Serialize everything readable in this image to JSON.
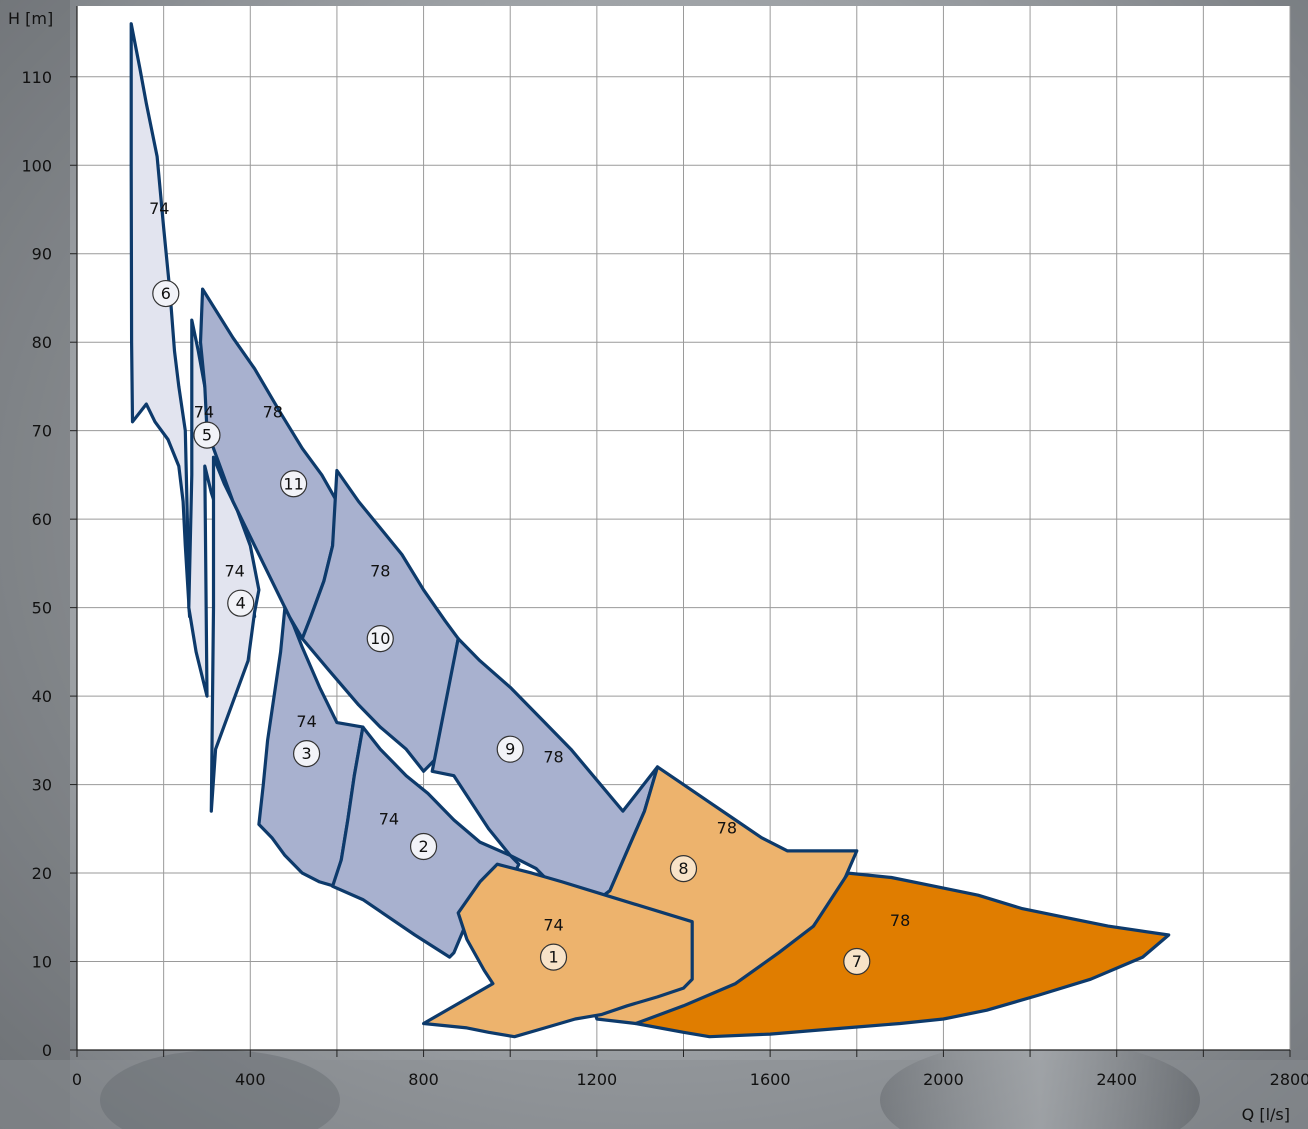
{
  "chart_data": {
    "type": "area",
    "xlabel": "Q [l/s]",
    "ylabel": "H [m]",
    "xlim": [
      0,
      2800
    ],
    "ylim": [
      0,
      118
    ],
    "xticks": [
      0,
      400,
      800,
      1200,
      1600,
      2000,
      2400,
      2800
    ],
    "yticks": [
      0,
      10,
      20,
      30,
      40,
      50,
      60,
      70,
      80,
      90,
      100,
      110
    ],
    "grid": true,
    "colors": {
      "light_blue": "#e2e4ef",
      "blue": "#a8b1cf",
      "light_orange": "#edb36d",
      "orange": "#e07d00",
      "outline": "#0d3a6b"
    },
    "regions": [
      {
        "id": "6",
        "efficiency": "74",
        "fill": "light_blue",
        "label_at": [
          190,
          95
        ],
        "marker_at": [
          205,
          85.5
        ],
        "points": [
          [
            125,
            116
          ],
          [
            145,
            111
          ],
          [
            160,
            107
          ],
          [
            185,
            101
          ],
          [
            200,
            93
          ],
          [
            215,
            85.5
          ],
          [
            225,
            79
          ],
          [
            235,
            75
          ],
          [
            250,
            70
          ],
          [
            260,
            49
          ],
          [
            250,
            57
          ],
          [
            245,
            62
          ],
          [
            235,
            66
          ],
          [
            210,
            69
          ],
          [
            180,
            71
          ],
          [
            160,
            73
          ],
          [
            128,
            71
          ],
          [
            126,
            80
          ],
          [
            125,
            100
          ]
        ]
      },
      {
        "id": "5",
        "efficiency": "74",
        "fill": "light_blue",
        "label_at": [
          293,
          72
        ],
        "marker_at": [
          300,
          69.5
        ],
        "points": [
          [
            265,
            82.5
          ],
          [
            280,
            79
          ],
          [
            295,
            75
          ],
          [
            320,
            70
          ],
          [
            360,
            62
          ],
          [
            390,
            56
          ],
          [
            410,
            49
          ],
          [
            360,
            56
          ],
          [
            330,
            60
          ],
          [
            310,
            63
          ],
          [
            295,
            66
          ],
          [
            300,
            40
          ],
          [
            275,
            45
          ],
          [
            258,
            50
          ],
          [
            265,
            65
          ]
        ]
      },
      {
        "id": "4",
        "efficiency": "74",
        "fill": "light_blue",
        "label_at": [
          364,
          54
        ],
        "marker_at": [
          378,
          50.5
        ],
        "points": [
          [
            315,
            67
          ],
          [
            340,
            64
          ],
          [
            370,
            61
          ],
          [
            400,
            57
          ],
          [
            420,
            52
          ],
          [
            410,
            49.5
          ],
          [
            395,
            44
          ],
          [
            365,
            40
          ],
          [
            320,
            34
          ],
          [
            310,
            27
          ],
          [
            315,
            50
          ]
        ]
      },
      {
        "id": "11",
        "efficiency": "78",
        "fill": "blue",
        "label_at": [
          452,
          72
        ],
        "marker_at": [
          500,
          64
        ],
        "points": [
          [
            290,
            86
          ],
          [
            360,
            80.5
          ],
          [
            410,
            77
          ],
          [
            470,
            72
          ],
          [
            520,
            68
          ],
          [
            565,
            65
          ],
          [
            600,
            62
          ],
          [
            590,
            57
          ],
          [
            570,
            53
          ],
          [
            540,
            49
          ],
          [
            520,
            46.5
          ],
          [
            490,
            49
          ],
          [
            430,
            55
          ],
          [
            360,
            62
          ],
          [
            300,
            70
          ],
          [
            295,
            75
          ],
          [
            285,
            80
          ]
        ]
      },
      {
        "id": "10",
        "efficiency": "78",
        "fill": "blue",
        "label_at": [
          700,
          54
        ],
        "marker_at": [
          700,
          46.5
        ],
        "points": [
          [
            600,
            65.5
          ],
          [
            650,
            62
          ],
          [
            700,
            59
          ],
          [
            750,
            56
          ],
          [
            800,
            52
          ],
          [
            850,
            48.5
          ],
          [
            880,
            46.5
          ],
          [
            860,
            41
          ],
          [
            840,
            36
          ],
          [
            830,
            33
          ],
          [
            800,
            31.5
          ],
          [
            760,
            34
          ],
          [
            700,
            36.5
          ],
          [
            650,
            39
          ],
          [
            580,
            43
          ],
          [
            520,
            46.5
          ],
          [
            540,
            49
          ],
          [
            570,
            53
          ],
          [
            590,
            57
          ]
        ]
      },
      {
        "id": "3",
        "efficiency": "74",
        "fill": "blue",
        "label_at": [
          530,
          37
        ],
        "marker_at": [
          530,
          33.5
        ],
        "points": [
          [
            480,
            50
          ],
          [
            500,
            48
          ],
          [
            520,
            45.5
          ],
          [
            560,
            41
          ],
          [
            600,
            37
          ],
          [
            660,
            36.5
          ],
          [
            640,
            31
          ],
          [
            625,
            26
          ],
          [
            610,
            21.5
          ],
          [
            595,
            18.5
          ],
          [
            560,
            19
          ],
          [
            520,
            20
          ],
          [
            480,
            22
          ],
          [
            450,
            24
          ],
          [
            420,
            25.5
          ],
          [
            430,
            30
          ],
          [
            440,
            35
          ],
          [
            455,
            40
          ],
          [
            470,
            45
          ]
        ]
      },
      {
        "id": "9",
        "efficiency": "78",
        "fill": "blue",
        "label_at": [
          1100,
          33
        ],
        "marker_at": [
          1000,
          34
        ],
        "points": [
          [
            880,
            46.5
          ],
          [
            930,
            44
          ],
          [
            1000,
            41
          ],
          [
            1080,
            37
          ],
          [
            1140,
            34
          ],
          [
            1200,
            30.5
          ],
          [
            1260,
            27
          ],
          [
            1340,
            32
          ],
          [
            1310,
            27
          ],
          [
            1270,
            22.5
          ],
          [
            1230,
            18
          ],
          [
            1190,
            16.5
          ],
          [
            1140,
            16.5
          ],
          [
            1100,
            18.5
          ],
          [
            1060,
            20.5
          ],
          [
            1000,
            22
          ],
          [
            950,
            25
          ],
          [
            870,
            31
          ],
          [
            820,
            31.5
          ]
        ]
      },
      {
        "id": "2",
        "efficiency": "74",
        "fill": "blue",
        "label_at": [
          720,
          26
        ],
        "marker_at": [
          800,
          23
        ],
        "points": [
          [
            660,
            36.5
          ],
          [
            700,
            34
          ],
          [
            760,
            31
          ],
          [
            810,
            29
          ],
          [
            870,
            26
          ],
          [
            930,
            23.5
          ],
          [
            1000,
            22
          ],
          [
            1020,
            21
          ],
          [
            990,
            18
          ],
          [
            960,
            17
          ],
          [
            900,
            14.5
          ],
          [
            870,
            11
          ],
          [
            860,
            10.5
          ],
          [
            780,
            13
          ],
          [
            720,
            15
          ],
          [
            660,
            17
          ],
          [
            590,
            18.5
          ],
          [
            610,
            21.5
          ],
          [
            625,
            26
          ],
          [
            640,
            31
          ]
        ]
      },
      {
        "id": "8",
        "efficiency": "78",
        "fill": "light_orange",
        "label_at": [
          1500,
          25
        ],
        "marker_at": [
          1400,
          20.5
        ],
        "points": [
          [
            1340,
            32
          ],
          [
            1400,
            30
          ],
          [
            1460,
            28
          ],
          [
            1520,
            26
          ],
          [
            1580,
            24
          ],
          [
            1640,
            22.5
          ],
          [
            1800,
            22.5
          ],
          [
            1760,
            18
          ],
          [
            1700,
            14
          ],
          [
            1640,
            11
          ],
          [
            1560,
            8
          ],
          [
            1480,
            6
          ],
          [
            1410,
            4.5
          ],
          [
            1360,
            3.8
          ],
          [
            1290,
            3
          ],
          [
            1200,
            3.5
          ],
          [
            1160,
            9
          ],
          [
            1140,
            16.5
          ],
          [
            1190,
            16.5
          ],
          [
            1230,
            18
          ],
          [
            1270,
            22.5
          ],
          [
            1310,
            27
          ]
        ]
      },
      {
        "id": "1",
        "efficiency": "74",
        "fill": "light_orange",
        "label_at": [
          1100,
          14
        ],
        "marker_at": [
          1100,
          10.5
        ],
        "points": [
          [
            970,
            21
          ],
          [
            1050,
            20
          ],
          [
            1120,
            19
          ],
          [
            1220,
            17.5
          ],
          [
            1420,
            14.5
          ],
          [
            1420,
            8
          ],
          [
            1400,
            7
          ],
          [
            1340,
            6
          ],
          [
            1270,
            5
          ],
          [
            1210,
            4
          ],
          [
            1150,
            3.5
          ],
          [
            1080,
            2.5
          ],
          [
            1010,
            1.5
          ],
          [
            950,
            2
          ],
          [
            900,
            2.5
          ],
          [
            800,
            3
          ],
          [
            960,
            7.5
          ],
          [
            940,
            9
          ],
          [
            900,
            12.5
          ],
          [
            880,
            15.5
          ],
          [
            930,
            19
          ]
        ]
      },
      {
        "id": "7",
        "efficiency": "78",
        "fill": "orange",
        "label_at": [
          1900,
          14.5
        ],
        "marker_at": [
          1800,
          10
        ],
        "points": [
          [
            1780,
            20
          ],
          [
            1880,
            19.5
          ],
          [
            1980,
            18.5
          ],
          [
            2080,
            17.5
          ],
          [
            2180,
            16
          ],
          [
            2280,
            15
          ],
          [
            2380,
            14
          ],
          [
            2520,
            13
          ],
          [
            2460,
            10.5
          ],
          [
            2340,
            8
          ],
          [
            2220,
            6.2
          ],
          [
            2100,
            4.5
          ],
          [
            2000,
            3.5
          ],
          [
            1900,
            3
          ],
          [
            1800,
            2.6
          ],
          [
            1700,
            2.2
          ],
          [
            1600,
            1.8
          ],
          [
            1460,
            1.5
          ],
          [
            1400,
            2
          ],
          [
            1290,
            3
          ],
          [
            1400,
            5
          ],
          [
            1520,
            7.5
          ],
          [
            1620,
            11
          ],
          [
            1700,
            14
          ],
          [
            1740,
            17
          ]
        ]
      }
    ]
  }
}
